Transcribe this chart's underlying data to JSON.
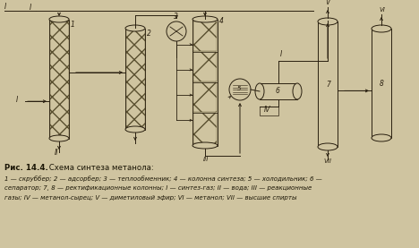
{
  "title_bold": "Рис. 14.4.",
  "title_normal": " Схема синтеза метанола:",
  "caption_line1": "1 — скруббер; 2 — адсорбер; 3 — теплообменник; 4 — колонна синтеза; 5 — холодильник; 6 —",
  "caption_line2": "сепаратор; 7, 8 — ректификационные колонны; I — синтез-газ; II — вода; III — реакционные",
  "caption_line3": "газы; IV — метанол-сырец; V — диметиловый эфир; VI — метанол; VII — высшие спирты",
  "bg_color": "#cfc4a0",
  "line_color": "#2a2010",
  "text_color": "#1a1505"
}
